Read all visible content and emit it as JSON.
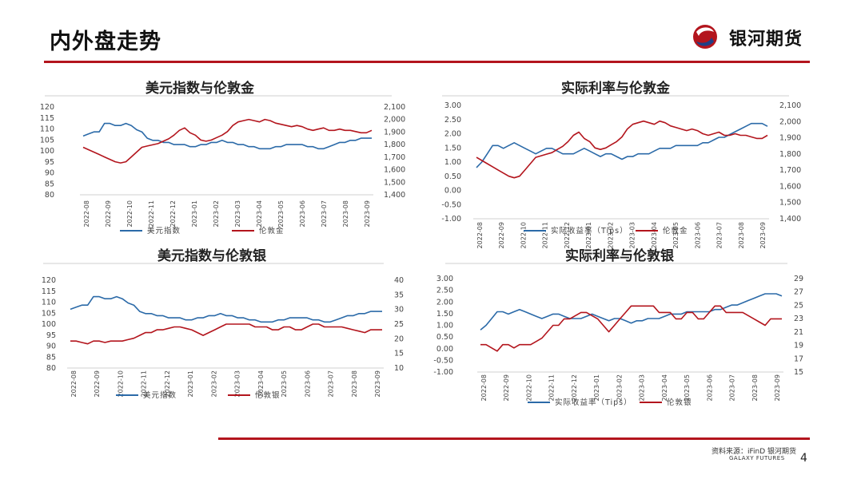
{
  "page": {
    "title": "内外盘走势",
    "logo_text": "银河期货",
    "source": "资料来源：iFinD 银河期货",
    "source_sub": "GALAXY FUTURES",
    "page_number": "4"
  },
  "colors": {
    "blue": "#2b6aa8",
    "red": "#b3151d",
    "accent": "#b3151d"
  },
  "icons": {
    "logo": "galaxy-futures-logo-icon"
  },
  "chart_data": [
    {
      "id": "c1",
      "type": "line",
      "title": "美元指数与伦敦金",
      "x_ticks": [
        "2022-08",
        "2022-09",
        "2022-10",
        "2022-11",
        "2022-12",
        "2023-01",
        "2023-02",
        "2023-03",
        "2023-04",
        "2023-05",
        "2023-06",
        "2023-07",
        "2023-08",
        "2023-09"
      ],
      "y_left": {
        "min": 80,
        "max": 120,
        "ticks": [
          "120",
          "115",
          "110",
          "105",
          "100",
          "95",
          "90",
          "85",
          "80"
        ]
      },
      "y_right": {
        "min": 1400,
        "max": 2100,
        "ticks": [
          "2,100",
          "2,000",
          "1,900",
          "1,800",
          "1,700",
          "1,600",
          "1,500",
          "1,400"
        ]
      },
      "grid": false,
      "legend_position": "bottom",
      "series": [
        {
          "name": "美元指数",
          "axis": "left",
          "color": "#2b6aa8",
          "values": [
            107,
            108,
            109,
            109,
            113,
            113,
            112,
            112,
            113,
            112,
            110,
            109,
            106,
            105,
            105,
            104,
            104,
            103,
            103,
            103,
            102,
            102,
            103,
            103,
            104,
            104,
            105,
            104,
            104,
            103,
            103,
            102,
            102,
            101,
            101,
            101,
            102,
            102,
            103,
            103,
            103,
            103,
            102,
            102,
            101,
            101,
            102,
            103,
            104,
            104,
            105,
            105,
            106,
            106,
            106
          ]
        },
        {
          "name": "伦敦金",
          "axis": "right",
          "color": "#b3151d",
          "values": [
            1780,
            1760,
            1740,
            1720,
            1700,
            1680,
            1660,
            1650,
            1660,
            1700,
            1740,
            1780,
            1790,
            1800,
            1810,
            1830,
            1850,
            1880,
            1920,
            1940,
            1900,
            1880,
            1840,
            1830,
            1840,
            1860,
            1880,
            1910,
            1960,
            1990,
            2000,
            2010,
            2000,
            1990,
            2010,
            2000,
            1980,
            1970,
            1960,
            1950,
            1960,
            1950,
            1930,
            1920,
            1930,
            1940,
            1920,
            1920,
            1930,
            1920,
            1920,
            1910,
            1900,
            1900,
            1920
          ]
        }
      ]
    },
    {
      "id": "c2",
      "type": "line",
      "title": "实际利率与伦敦金",
      "x_ticks": [
        "2022-08",
        "2022-09",
        "2022-10",
        "2022-11",
        "2022-12",
        "2023-01",
        "2023-02",
        "2023-03",
        "2023-04",
        "2023-05",
        "2023-06",
        "2023-07",
        "2023-08",
        "2023-09"
      ],
      "y_left": {
        "min": -1.0,
        "max": 3.0,
        "ticks": [
          "3.00",
          "2.50",
          "2.00",
          "1.50",
          "1.00",
          "0.50",
          "0.00",
          "-0.50",
          "-1.00"
        ]
      },
      "y_right": {
        "min": 1400,
        "max": 2100,
        "ticks": [
          "2,100",
          "2,000",
          "1,900",
          "1,800",
          "1,700",
          "1,600",
          "1,500",
          "1,400"
        ]
      },
      "grid": false,
      "legend_position": "bottom",
      "series": [
        {
          "name": "实际收益率（Tips）",
          "axis": "left",
          "color": "#2b6aa8",
          "values": [
            0.8,
            1.0,
            1.3,
            1.6,
            1.6,
            1.5,
            1.6,
            1.7,
            1.6,
            1.5,
            1.4,
            1.3,
            1.4,
            1.5,
            1.5,
            1.4,
            1.3,
            1.3,
            1.3,
            1.4,
            1.5,
            1.4,
            1.3,
            1.2,
            1.3,
            1.3,
            1.2,
            1.1,
            1.2,
            1.2,
            1.3,
            1.3,
            1.3,
            1.4,
            1.5,
            1.5,
            1.5,
            1.6,
            1.6,
            1.6,
            1.6,
            1.6,
            1.7,
            1.7,
            1.8,
            1.9,
            1.9,
            2.0,
            2.1,
            2.2,
            2.3,
            2.4,
            2.4,
            2.4,
            2.3
          ]
        },
        {
          "name": "伦敦金",
          "axis": "right",
          "color": "#b3151d",
          "values": [
            1780,
            1760,
            1740,
            1720,
            1700,
            1680,
            1660,
            1650,
            1660,
            1700,
            1740,
            1780,
            1790,
            1800,
            1810,
            1830,
            1850,
            1880,
            1920,
            1940,
            1900,
            1880,
            1840,
            1830,
            1840,
            1860,
            1880,
            1910,
            1960,
            1990,
            2000,
            2010,
            2000,
            1990,
            2010,
            2000,
            1980,
            1970,
            1960,
            1950,
            1960,
            1950,
            1930,
            1920,
            1930,
            1940,
            1920,
            1920,
            1930,
            1920,
            1920,
            1910,
            1900,
            1900,
            1920
          ]
        }
      ]
    },
    {
      "id": "c3",
      "type": "line",
      "title": "美元指数与伦敦银",
      "x_ticks": [
        "2022-08",
        "2022-09",
        "2022-10",
        "2022-11",
        "2022-12",
        "2023-01",
        "2023-02",
        "2023-03",
        "2023-04",
        "2023-05",
        "2023-06",
        "2023-07",
        "2023-08",
        "2023-09"
      ],
      "y_left": {
        "min": 80,
        "max": 120,
        "ticks": [
          "120",
          "115",
          "110",
          "105",
          "100",
          "95",
          "90",
          "85",
          "80"
        ]
      },
      "y_right": {
        "min": 10,
        "max": 40,
        "ticks": [
          "40",
          "35",
          "30",
          "25",
          "20",
          "15",
          "10"
        ]
      },
      "grid": false,
      "legend_position": "bottom",
      "series": [
        {
          "name": "美元指数",
          "axis": "left",
          "color": "#2b6aa8",
          "values": [
            107,
            108,
            109,
            109,
            113,
            113,
            112,
            112,
            113,
            112,
            110,
            109,
            106,
            105,
            105,
            104,
            104,
            103,
            103,
            103,
            102,
            102,
            103,
            103,
            104,
            104,
            105,
            104,
            104,
            103,
            103,
            102,
            102,
            101,
            101,
            101,
            102,
            102,
            103,
            103,
            103,
            103,
            102,
            102,
            101,
            101,
            102,
            103,
            104,
            104,
            105,
            105,
            106,
            106,
            106
          ]
        },
        {
          "name": "伦敦银",
          "axis": "right",
          "color": "#b3151d",
          "values": [
            19,
            19,
            18.5,
            18,
            19,
            19,
            18.5,
            19,
            19,
            19,
            19.5,
            20,
            21,
            22,
            22,
            23,
            23,
            23.5,
            24,
            24,
            23.5,
            23,
            22,
            21,
            22,
            23,
            24,
            25,
            25,
            25,
            25,
            25,
            24,
            24,
            24,
            23,
            23,
            24,
            24,
            23,
            23,
            24,
            25,
            25,
            24,
            24,
            24,
            24,
            23.5,
            23,
            22.5,
            22,
            23,
            23,
            23
          ]
        }
      ]
    },
    {
      "id": "c4",
      "type": "line",
      "title": "实际利率与伦敦银",
      "x_ticks": [
        "2022-08",
        "2022-09",
        "2022-10",
        "2022-11",
        "2022-12",
        "2023-01",
        "2023-02",
        "2023-03",
        "2023-04",
        "2023-05",
        "2023-06",
        "2023-07",
        "2023-08",
        "2023-09"
      ],
      "y_left": {
        "min": -1.0,
        "max": 3.0,
        "ticks": [
          "3.00",
          "2.50",
          "2.00",
          "1.50",
          "1.00",
          "0.50",
          "0.00",
          "-0.50",
          "-1.00"
        ]
      },
      "y_right": {
        "min": 15,
        "max": 29,
        "ticks": [
          "29",
          "27",
          "25",
          "23",
          "21",
          "19",
          "17",
          "15"
        ]
      },
      "grid": false,
      "legend_position": "bottom",
      "series": [
        {
          "name": "实际收益率（Tips）",
          "axis": "left",
          "color": "#2b6aa8",
          "values": [
            0.8,
            1.0,
            1.3,
            1.6,
            1.6,
            1.5,
            1.6,
            1.7,
            1.6,
            1.5,
            1.4,
            1.3,
            1.4,
            1.5,
            1.5,
            1.4,
            1.3,
            1.3,
            1.3,
            1.4,
            1.5,
            1.4,
            1.3,
            1.2,
            1.3,
            1.3,
            1.2,
            1.1,
            1.2,
            1.2,
            1.3,
            1.3,
            1.3,
            1.4,
            1.5,
            1.5,
            1.5,
            1.6,
            1.6,
            1.6,
            1.6,
            1.6,
            1.7,
            1.7,
            1.8,
            1.9,
            1.9,
            2.0,
            2.1,
            2.2,
            2.3,
            2.4,
            2.4,
            2.4,
            2.3
          ]
        },
        {
          "name": "伦敦银",
          "axis": "right",
          "color": "#b3151d",
          "values": [
            19,
            19,
            18.5,
            18,
            19,
            19,
            18.5,
            19,
            19,
            19,
            19.5,
            20,
            21,
            22,
            22,
            23,
            23,
            23.5,
            24,
            24,
            23.5,
            23,
            22,
            21,
            22,
            23,
            24,
            25,
            25,
            25,
            25,
            25,
            24,
            24,
            24,
            23,
            23,
            24,
            24,
            23,
            23,
            24,
            25,
            25,
            24,
            24,
            24,
            24,
            23.5,
            23,
            22.5,
            22,
            23,
            23,
            23
          ]
        }
      ]
    }
  ]
}
